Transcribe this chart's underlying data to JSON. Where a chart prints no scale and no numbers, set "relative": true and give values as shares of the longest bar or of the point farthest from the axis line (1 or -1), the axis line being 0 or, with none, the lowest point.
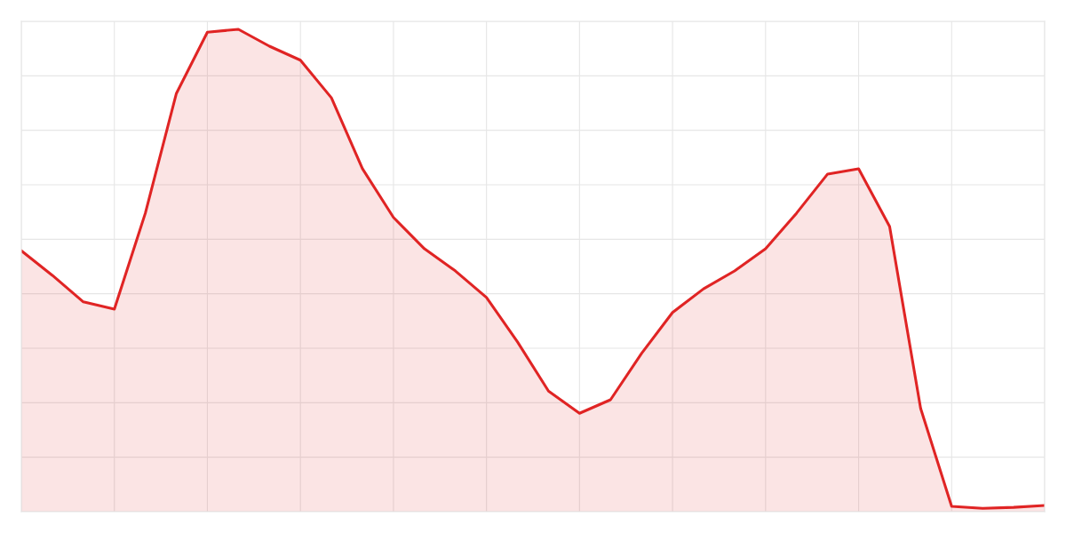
{
  "chart_data": {
    "type": "area",
    "relative": true,
    "categories": [
      null,
      null,
      null,
      null,
      null,
      null,
      null,
      null,
      null,
      null,
      null,
      null,
      null,
      null,
      null,
      null,
      null,
      null,
      null,
      null,
      null,
      null,
      null,
      null,
      null,
      null,
      null,
      null,
      null,
      null,
      null,
      null,
      null,
      null
    ],
    "series": [
      {
        "color": "#e02424",
        "values": [
          0.541,
          0.49,
          0.435,
          0.42,
          0.619,
          0.867,
          0.994,
          1,
          0.965,
          0.936,
          0.858,
          0.711,
          0.61,
          0.545,
          0.499,
          0.444,
          0.352,
          0.25,
          0.204,
          0.232,
          0.328,
          0.413,
          0.462,
          0.499,
          0.545,
          0.619,
          0.7,
          0.711,
          0.591,
          0.214,
          0.011,
          0.007,
          0.009,
          0.013
        ]
      }
    ],
    "grid": true,
    "legend": false,
    "tick_labels": false,
    "marker": "none",
    "line_style": "solid"
  }
}
